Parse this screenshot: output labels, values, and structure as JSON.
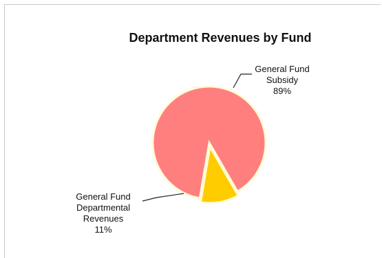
{
  "chart_data": {
    "type": "pie",
    "title": "Department Revenues by Fund",
    "slices": [
      {
        "name_lines": [
          "General Fund",
          "Subsidy"
        ],
        "value": 89,
        "label": "89%",
        "color": "#ff7f7f"
      },
      {
        "name_lines": [
          "General Fund",
          "Departmental",
          "Revenues"
        ],
        "value": 11,
        "label": "11%",
        "color": "#ffcc00"
      }
    ],
    "slice_border_color": "#fffbd6",
    "legend": "none"
  }
}
